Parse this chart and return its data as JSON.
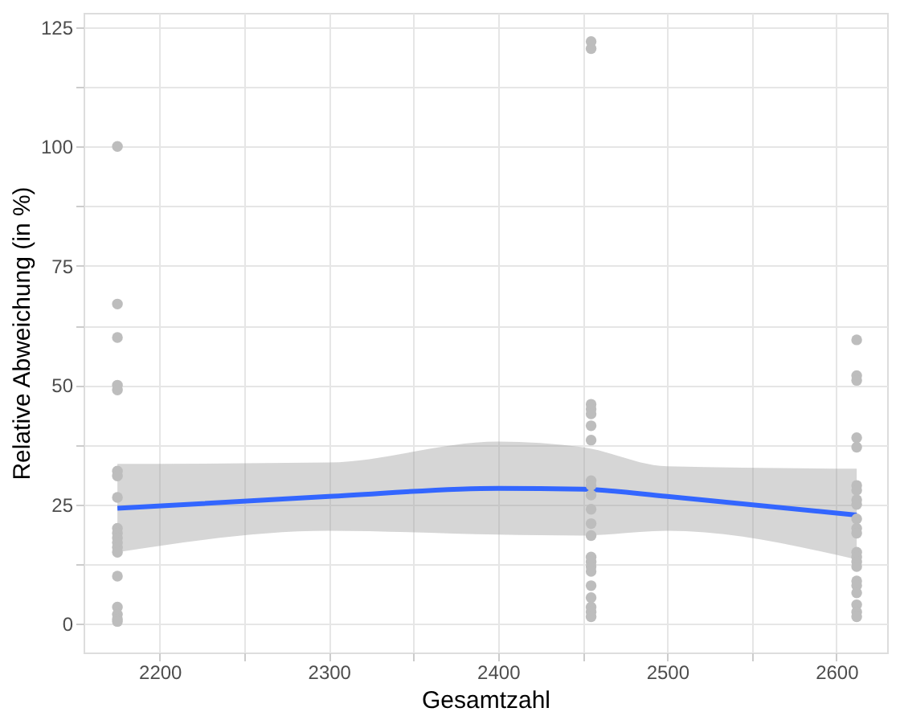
{
  "chart_data": {
    "type": "scatter",
    "xlabel": "Gesamtzahl",
    "ylabel": "Relative Abweichung (in %)",
    "xlim": [
      2155,
      2630
    ],
    "ylim": [
      -6,
      128
    ],
    "xticks": [
      2200,
      {
        "value": 2250,
        "label": null
      },
      2300,
      {
        "value": 2350,
        "label": null
      },
      2400,
      {
        "value": 2450,
        "label": null
      },
      2500,
      {
        "value": 2550,
        "label": null
      },
      2600
    ],
    "yticks": [
      0,
      {
        "value": 12.5,
        "label": null
      },
      25,
      {
        "value": 37.5,
        "label": null
      },
      50,
      {
        "value": 62.5,
        "label": null
      },
      75,
      {
        "value": 87.5,
        "label": null
      },
      100,
      {
        "value": 112.5,
        "label": null
      },
      125
    ],
    "grid": true,
    "series": [
      {
        "type": "line",
        "color": "#3366ff",
        "x": [
          2175,
          2300,
          2400,
          2450,
          2500,
          2612
        ],
        "values": [
          24.2,
          26.7,
          28.4,
          28.2,
          26.7,
          22.8
        ],
        "lower": [
          15,
          19.5,
          18.7,
          18.5,
          19.5,
          13.5
        ],
        "upper": [
          33.5,
          33.8,
          38.2,
          37,
          33,
          32.5
        ]
      },
      {
        "color": "#bdbdbd",
        "marker": "circle",
        "x": [
          2175,
          2175,
          2175,
          2175,
          2175,
          2175,
          2175,
          2175,
          2175,
          2175,
          2175,
          2175,
          2175,
          2175,
          2175,
          2175,
          2175,
          2175,
          2175,
          2455,
          2455,
          2455,
          2455,
          2455,
          2455,
          2455,
          2455,
          2455,
          2455,
          2455,
          2455,
          2455,
          2455,
          2455,
          2455,
          2455,
          2455,
          2455,
          2455,
          2455,
          2455,
          2612,
          2612,
          2612,
          2612,
          2612,
          2612,
          2612,
          2612,
          2612,
          2612,
          2612,
          2612,
          2612,
          2612,
          2612,
          2612,
          2612,
          2612,
          2612,
          2612,
          2612,
          2612
        ],
        "values": [
          100,
          67,
          60,
          50,
          49,
          32,
          31,
          26.5,
          20,
          19,
          18,
          17,
          16,
          15,
          10,
          3.5,
          2,
          1,
          0.5,
          122,
          120.5,
          46,
          45,
          44,
          41.5,
          38.5,
          30,
          29,
          27,
          24,
          21,
          18.5,
          14,
          13,
          12,
          11,
          8,
          5.5,
          3.5,
          2.5,
          1.5,
          59.5,
          52,
          51,
          39,
          37,
          29,
          28,
          26,
          25,
          22,
          20,
          19,
          15,
          14,
          13,
          12,
          9,
          8,
          6.5,
          4,
          2.5,
          1.5
        ]
      }
    ]
  }
}
